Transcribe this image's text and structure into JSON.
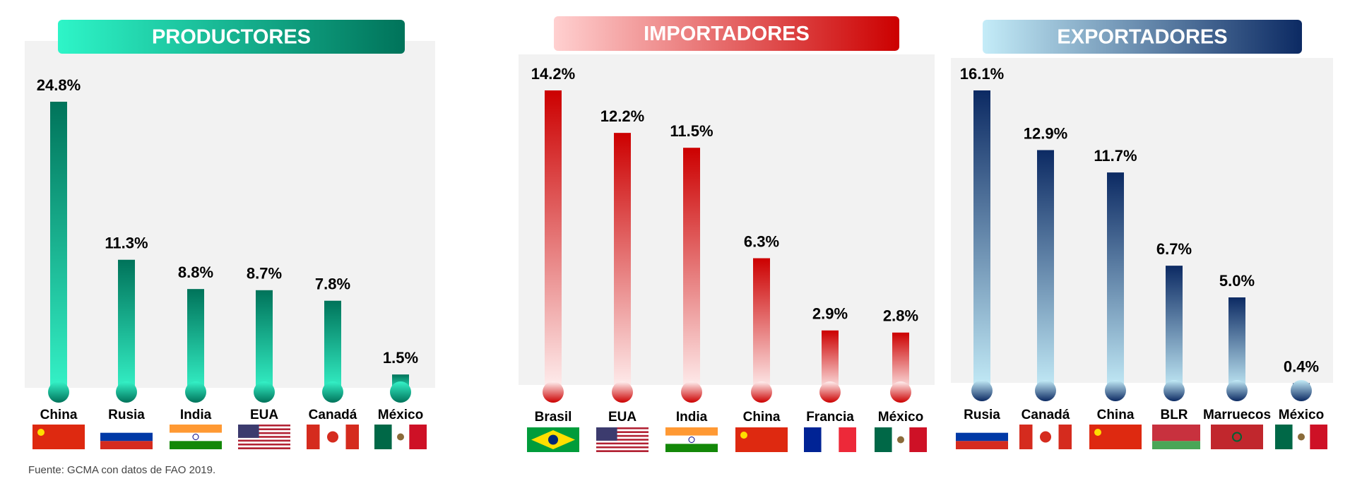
{
  "chart_data": [
    {
      "type": "bar",
      "title": "PRODUCTORES",
      "categories": [
        "China",
        "Rusia",
        "India",
        "EUA",
        "Canadá",
        "México"
      ],
      "values": [
        24.8,
        11.3,
        8.8,
        8.7,
        7.8,
        1.5
      ],
      "value_labels": [
        "24.8%",
        "11.3%",
        "8.8%",
        "8.7%",
        "7.8%",
        "1.5%"
      ],
      "color": "#00735a"
    },
    {
      "type": "bar",
      "title": "IMPORTADORES",
      "categories": [
        "Brasil",
        "EUA",
        "India",
        "China",
        "Francia",
        "México"
      ],
      "values": [
        14.2,
        12.2,
        11.5,
        6.3,
        2.9,
        2.8
      ],
      "value_labels": [
        "14.2%",
        "12.2%",
        "11.5%",
        "6.3%",
        "2.9%",
        "2.8%"
      ],
      "color": "#cc0000"
    },
    {
      "type": "bar",
      "title": "EXPORTADORES",
      "categories": [
        "Rusia",
        "Canadá",
        "China",
        "BLR",
        "Marruecos",
        "México"
      ],
      "values": [
        16.1,
        12.9,
        11.7,
        6.7,
        5.0,
        0.4
      ],
      "value_labels": [
        "16.1%",
        "12.9%",
        "11.7%",
        "6.7%",
        "5.0%",
        "0.4%"
      ],
      "color": "#0c2a63"
    }
  ],
  "source": "Fuente: GCMA con datos de FAO 2019."
}
